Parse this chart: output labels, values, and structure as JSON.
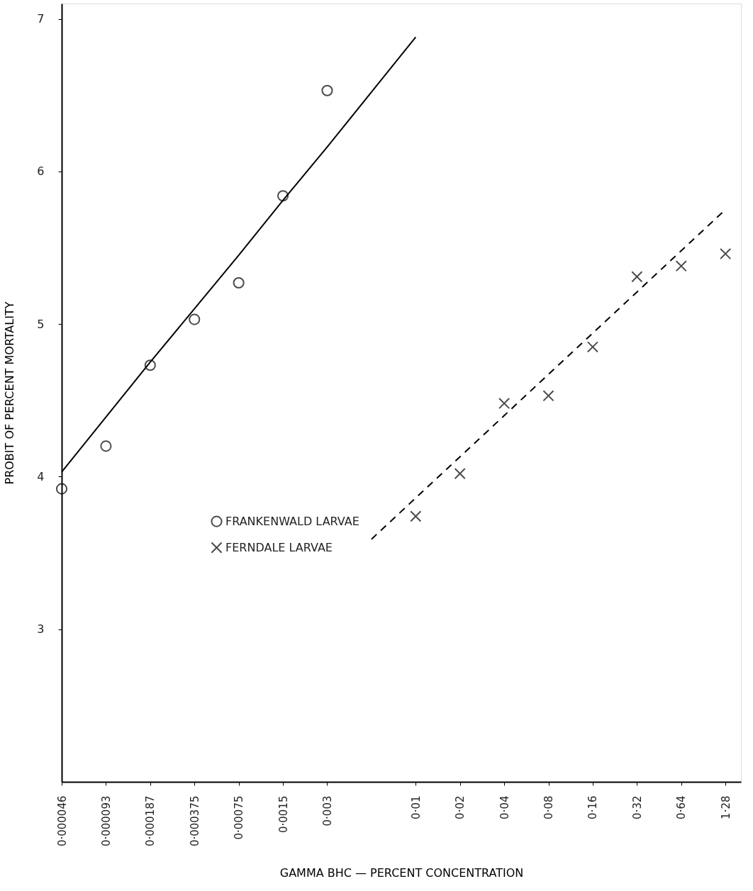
{
  "chart_data": {
    "type": "scatter",
    "xlabel": "GAMMA BHC — PERCENT CONCENTRATION",
    "ylabel": "PROBIT OF PERCENT MORTALITY",
    "categories": [
      "0·000046",
      "0·000093",
      "0·000187",
      "0·000375",
      "0·00075",
      "0·0015",
      "0·003",
      null,
      "0·01",
      "0·02",
      "0·04",
      "0·08",
      "0·16",
      "0·32",
      "0·64",
      "1·28"
    ],
    "ylim": [
      2,
      7.1
    ],
    "yticks": [
      3,
      4,
      5,
      6,
      7
    ],
    "grid": false,
    "legend": "bottom",
    "series": [
      {
        "name": "FRANKENWALD LARVAE",
        "marker": "circle",
        "color": "#000000",
        "values": [
          3.92,
          4.2,
          4.73,
          5.03,
          5.27,
          5.84,
          6.53,
          null,
          null,
          null,
          null,
          null,
          null,
          null,
          null,
          null
        ]
      },
      {
        "type": "line",
        "line_style": "solid",
        "color": "#000000",
        "values": [
          4.03,
          4.39,
          4.75,
          5.1,
          5.45,
          5.81,
          6.16,
          6.52,
          6.88,
          null,
          null,
          null,
          null,
          null,
          null,
          null
        ]
      },
      {
        "name": "FERNDALE LARVAE",
        "marker": "cross",
        "color": "#000000",
        "values": [
          null,
          null,
          null,
          null,
          null,
          null,
          null,
          null,
          3.74,
          4.02,
          4.48,
          4.53,
          4.85,
          5.31,
          5.38,
          5.46
        ]
      },
      {
        "type": "line",
        "line_style": "dashed",
        "color": "#000000",
        "values": [
          null,
          null,
          null,
          null,
          null,
          null,
          null,
          3.59,
          3.86,
          4.13,
          4.4,
          4.67,
          4.94,
          5.21,
          5.48,
          5.75
        ]
      }
    ]
  }
}
